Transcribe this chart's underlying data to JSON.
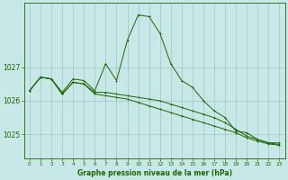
{
  "title": "Graphe pression niveau de la mer (hPa)",
  "bg_color": "#c8e8e8",
  "grid_color": "#a0c4c4",
  "line_color": "#1a6600",
  "xlim": [
    -0.5,
    23.5
  ],
  "ylim": [
    1024.3,
    1028.9
  ],
  "yticks": [
    1025,
    1026,
    1027
  ],
  "xtick_labels": [
    "0",
    "1",
    "2",
    "3",
    "4",
    "5",
    "6",
    "7",
    "8",
    "9",
    "10",
    "11",
    "12",
    "13",
    "14",
    "15",
    "16",
    "17",
    "18",
    "19",
    "20",
    "21",
    "22",
    "23"
  ],
  "series1_x": [
    0,
    1,
    2,
    3,
    4,
    5,
    6,
    7,
    8,
    9,
    10,
    11,
    12,
    13,
    14,
    15,
    16,
    17,
    18,
    19,
    20,
    21,
    22,
    23
  ],
  "series1_y": [
    1026.3,
    1026.7,
    1026.65,
    1026.25,
    1026.65,
    1026.6,
    1026.3,
    1027.1,
    1026.6,
    1027.8,
    1028.55,
    1028.5,
    1028.0,
    1027.1,
    1026.6,
    1026.4,
    1026.0,
    1025.7,
    1025.5,
    1025.1,
    1025.05,
    1024.85,
    1024.75,
    1024.75
  ],
  "series2_x": [
    0,
    1,
    2,
    3,
    4,
    5,
    6,
    7,
    8,
    9,
    10,
    11,
    12,
    13,
    14,
    15,
    16,
    17,
    18,
    19,
    20,
    21,
    22,
    23
  ],
  "series2_y": [
    1026.3,
    1026.7,
    1026.65,
    1026.2,
    1026.55,
    1026.5,
    1026.25,
    1026.25,
    1026.2,
    1026.15,
    1026.1,
    1026.05,
    1026.0,
    1025.9,
    1025.8,
    1025.7,
    1025.6,
    1025.5,
    1025.35,
    1025.15,
    1024.95,
    1024.85,
    1024.75,
    1024.7
  ],
  "series3_x": [
    0,
    1,
    2,
    3,
    4,
    5,
    6,
    7,
    8,
    9,
    10,
    11,
    12,
    13,
    14,
    15,
    16,
    17,
    18,
    19,
    20,
    21,
    22,
    23
  ],
  "series3_y": [
    1026.3,
    1026.7,
    1026.65,
    1026.2,
    1026.55,
    1026.5,
    1026.2,
    1026.15,
    1026.1,
    1026.05,
    1025.95,
    1025.85,
    1025.75,
    1025.65,
    1025.55,
    1025.45,
    1025.35,
    1025.25,
    1025.15,
    1025.05,
    1024.9,
    1024.8,
    1024.72,
    1024.68
  ]
}
